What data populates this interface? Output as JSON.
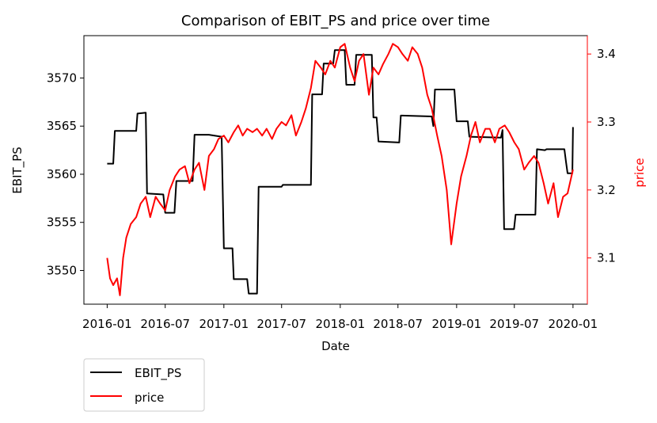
{
  "chart_data": {
    "type": "line",
    "title": "Comparison of EBIT_PS and price over time",
    "xlabel": "Date",
    "ylabel_left": "EBIT_PS",
    "ylabel_right": "price",
    "x_ticks": [
      "2016-01",
      "2016-07",
      "2017-01",
      "2017-07",
      "2018-01",
      "2018-07",
      "2019-01",
      "2019-07",
      "2020-01"
    ],
    "y_left_ticks": [
      3550,
      3555,
      3560,
      3565,
      3570
    ],
    "y_right_ticks": [
      3.1,
      3.2,
      3.3,
      3.4
    ],
    "y_left_range": [
      3546.5,
      3574.4
    ],
    "y_right_range": [
      3.032,
      3.427
    ],
    "x_range": [
      "2015-10-20",
      "2020-02-15"
    ],
    "grid": false,
    "legend_position": "below-left",
    "colors": {
      "EBIT_PS": "#000000",
      "price": "#ff0000",
      "right_axis": "#ff0000"
    },
    "series": [
      {
        "name": "EBIT_PS",
        "axis": "left",
        "points": [
          [
            "2016-01-01",
            3561.1
          ],
          [
            "2016-01-20",
            3561.1
          ],
          [
            "2016-01-25",
            3564.5
          ],
          [
            "2016-04-01",
            3564.5
          ],
          [
            "2016-04-05",
            3566.3
          ],
          [
            "2016-05-01",
            3566.4
          ],
          [
            "2016-05-05",
            3558.0
          ],
          [
            "2016-06-25",
            3557.9
          ],
          [
            "2016-07-01",
            3556.0
          ],
          [
            "2016-07-30",
            3556.0
          ],
          [
            "2016-08-05",
            3559.3
          ],
          [
            "2016-09-25",
            3559.3
          ],
          [
            "2016-10-01",
            3564.1
          ],
          [
            "2016-11-15",
            3564.1
          ],
          [
            "2016-12-25",
            3563.9
          ],
          [
            "2017-01-01",
            3552.3
          ],
          [
            "2017-01-28",
            3552.3
          ],
          [
            "2017-02-01",
            3549.1
          ],
          [
            "2017-03-15",
            3549.1
          ],
          [
            "2017-03-20",
            3547.6
          ],
          [
            "2017-04-15",
            3547.6
          ],
          [
            "2017-04-20",
            3558.7
          ],
          [
            "2017-07-01",
            3558.7
          ],
          [
            "2017-07-05",
            3558.9
          ],
          [
            "2017-10-01",
            3558.9
          ],
          [
            "2017-10-05",
            3568.3
          ],
          [
            "2017-11-05",
            3568.3
          ],
          [
            "2017-11-10",
            3571.5
          ],
          [
            "2017-12-10",
            3571.5
          ],
          [
            "2017-12-15",
            3572.9
          ],
          [
            "2018-01-15",
            3572.9
          ],
          [
            "2018-01-20",
            3569.3
          ],
          [
            "2018-02-15",
            3569.3
          ],
          [
            "2018-02-20",
            3572.4
          ],
          [
            "2018-04-10",
            3572.4
          ],
          [
            "2018-04-15",
            3565.9
          ],
          [
            "2018-04-25",
            3565.9
          ],
          [
            "2018-05-01",
            3563.4
          ],
          [
            "2018-07-05",
            3563.3
          ],
          [
            "2018-07-10",
            3566.1
          ],
          [
            "2018-10-15",
            3566.0
          ],
          [
            "2018-10-20",
            3565.0
          ],
          [
            "2018-10-25",
            3568.8
          ],
          [
            "2018-12-25",
            3568.8
          ],
          [
            "2019-01-01",
            3565.5
          ],
          [
            "2019-02-05",
            3565.5
          ],
          [
            "2019-02-10",
            3563.9
          ],
          [
            "2019-05-20",
            3563.8
          ],
          [
            "2019-05-25",
            3564.6
          ],
          [
            "2019-05-30",
            3554.3
          ],
          [
            "2019-06-30",
            3554.3
          ],
          [
            "2019-07-05",
            3555.8
          ],
          [
            "2019-09-05",
            3555.8
          ],
          [
            "2019-09-10",
            3562.6
          ],
          [
            "2019-10-05",
            3562.5
          ],
          [
            "2019-10-10",
            3562.6
          ],
          [
            "2019-12-05",
            3562.6
          ],
          [
            "2019-12-10",
            3561.3
          ],
          [
            "2019-12-15",
            3560.1
          ],
          [
            "2019-12-30",
            3560.1
          ],
          [
            "2020-01-01",
            3564.9
          ]
        ]
      },
      {
        "name": "price",
        "axis": "right",
        "points": [
          [
            "2016-01-01",
            3.1
          ],
          [
            "2016-01-10",
            3.07
          ],
          [
            "2016-01-20",
            3.06
          ],
          [
            "2016-02-01",
            3.07
          ],
          [
            "2016-02-10",
            3.045
          ],
          [
            "2016-02-20",
            3.1
          ],
          [
            "2016-03-01",
            3.13
          ],
          [
            "2016-03-15",
            3.15
          ],
          [
            "2016-04-01",
            3.16
          ],
          [
            "2016-04-15",
            3.18
          ],
          [
            "2016-05-01",
            3.19
          ],
          [
            "2016-05-15",
            3.16
          ],
          [
            "2016-06-01",
            3.19
          ],
          [
            "2016-06-15",
            3.18
          ],
          [
            "2016-07-01",
            3.17
          ],
          [
            "2016-07-15",
            3.2
          ],
          [
            "2016-08-01",
            3.22
          ],
          [
            "2016-08-15",
            3.23
          ],
          [
            "2016-09-01",
            3.235
          ],
          [
            "2016-09-15",
            3.21
          ],
          [
            "2016-10-01",
            3.23
          ],
          [
            "2016-10-15",
            3.24
          ],
          [
            "2016-11-01",
            3.2
          ],
          [
            "2016-11-15",
            3.25
          ],
          [
            "2016-12-01",
            3.26
          ],
          [
            "2016-12-15",
            3.275
          ],
          [
            "2017-01-01",
            3.28
          ],
          [
            "2017-01-15",
            3.27
          ],
          [
            "2017-02-01",
            3.285
          ],
          [
            "2017-02-15",
            3.295
          ],
          [
            "2017-03-01",
            3.28
          ],
          [
            "2017-03-15",
            3.29
          ],
          [
            "2017-04-01",
            3.285
          ],
          [
            "2017-04-15",
            3.29
          ],
          [
            "2017-05-01",
            3.28
          ],
          [
            "2017-05-15",
            3.29
          ],
          [
            "2017-06-01",
            3.275
          ],
          [
            "2017-06-15",
            3.29
          ],
          [
            "2017-07-01",
            3.3
          ],
          [
            "2017-07-15",
            3.295
          ],
          [
            "2017-08-01",
            3.31
          ],
          [
            "2017-08-15",
            3.28
          ],
          [
            "2017-09-01",
            3.3
          ],
          [
            "2017-09-15",
            3.32
          ],
          [
            "2017-10-01",
            3.35
          ],
          [
            "2017-10-15",
            3.39
          ],
          [
            "2017-11-01",
            3.38
          ],
          [
            "2017-11-15",
            3.37
          ],
          [
            "2017-12-01",
            3.39
          ],
          [
            "2017-12-15",
            3.38
          ],
          [
            "2018-01-01",
            3.41
          ],
          [
            "2018-01-15",
            3.415
          ],
          [
            "2018-02-01",
            3.38
          ],
          [
            "2018-02-15",
            3.36
          ],
          [
            "2018-03-01",
            3.39
          ],
          [
            "2018-03-15",
            3.4
          ],
          [
            "2018-04-01",
            3.34
          ],
          [
            "2018-04-15",
            3.38
          ],
          [
            "2018-05-01",
            3.37
          ],
          [
            "2018-05-15",
            3.385
          ],
          [
            "2018-06-01",
            3.4
          ],
          [
            "2018-06-15",
            3.415
          ],
          [
            "2018-07-01",
            3.41
          ],
          [
            "2018-07-15",
            3.4
          ],
          [
            "2018-08-01",
            3.39
          ],
          [
            "2018-08-15",
            3.41
          ],
          [
            "2018-09-01",
            3.4
          ],
          [
            "2018-09-15",
            3.38
          ],
          [
            "2018-10-01",
            3.34
          ],
          [
            "2018-10-15",
            3.32
          ],
          [
            "2018-11-01",
            3.28
          ],
          [
            "2018-11-15",
            3.25
          ],
          [
            "2018-12-01",
            3.2
          ],
          [
            "2018-12-15",
            3.12
          ],
          [
            "2019-01-01",
            3.18
          ],
          [
            "2019-01-15",
            3.22
          ],
          [
            "2019-02-01",
            3.25
          ],
          [
            "2019-02-15",
            3.28
          ],
          [
            "2019-03-01",
            3.3
          ],
          [
            "2019-03-15",
            3.27
          ],
          [
            "2019-04-01",
            3.29
          ],
          [
            "2019-04-15",
            3.29
          ],
          [
            "2019-05-01",
            3.27
          ],
          [
            "2019-05-15",
            3.29
          ],
          [
            "2019-06-01",
            3.295
          ],
          [
            "2019-06-15",
            3.285
          ],
          [
            "2019-07-01",
            3.27
          ],
          [
            "2019-07-15",
            3.26
          ],
          [
            "2019-08-01",
            3.23
          ],
          [
            "2019-08-15",
            3.24
          ],
          [
            "2019-09-01",
            3.25
          ],
          [
            "2019-09-15",
            3.24
          ],
          [
            "2019-10-01",
            3.21
          ],
          [
            "2019-10-15",
            3.18
          ],
          [
            "2019-11-01",
            3.21
          ],
          [
            "2019-11-15",
            3.16
          ],
          [
            "2019-12-01",
            3.19
          ],
          [
            "2019-12-15",
            3.195
          ],
          [
            "2020-01-01",
            3.23
          ]
        ]
      }
    ]
  }
}
